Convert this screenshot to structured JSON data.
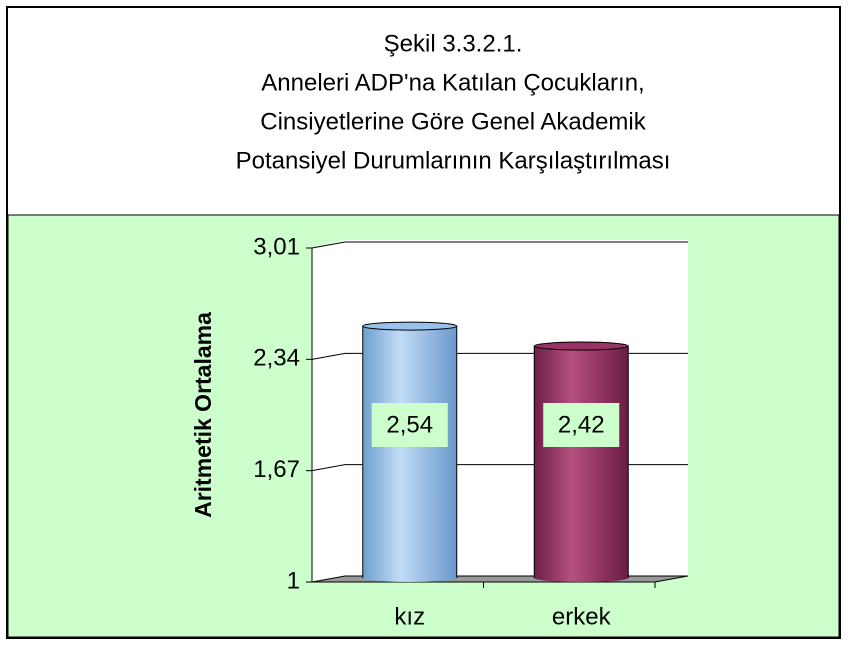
{
  "chart_data": {
    "type": "bar",
    "title": [
      "Şekil 3.3.2.1.",
      "Anneleri ADP'na Katılan Çocukların,",
      "Cinsiyetlerine Göre Genel Akademik",
      "Potansiyel Durumlarının Karşılaştırılması"
    ],
    "y_label": "Aritmetik Ortalama",
    "categories": [
      "kız",
      "erkek"
    ],
    "values": [
      2.54,
      2.42
    ],
    "value_labels": [
      "2,54",
      "2,42"
    ],
    "colors": [
      "#99c2ea",
      "#993366"
    ],
    "ylim": [
      1,
      3.01
    ],
    "yticks": [
      1,
      {
        "value": 1.67,
        "label": "1,67"
      },
      {
        "value": 2.34,
        "label": "2,34"
      },
      {
        "value": 3.01,
        "label": "3,01"
      }
    ],
    "grid": true
  }
}
